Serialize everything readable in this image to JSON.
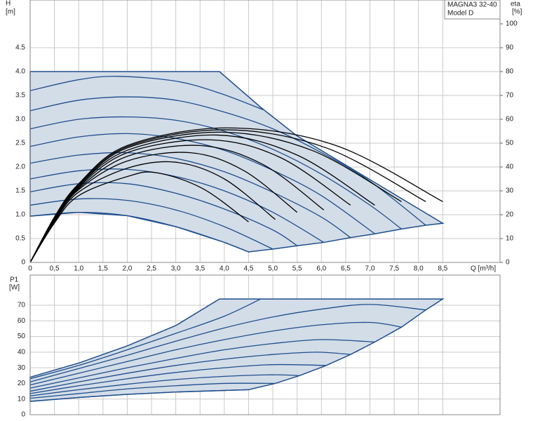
{
  "chart_data": [
    {
      "type": "line",
      "annotations": [
        "MAGNA3 32-40",
        "Model D"
      ],
      "ylabel": "H",
      "yunit": "[m]",
      "y2label": "eta",
      "y2unit": "[%]",
      "xlabel": "Q [m³/h]",
      "xlim": [
        0,
        9.68
      ],
      "ylim": [
        0,
        5.5
      ],
      "y2lim": [
        0,
        110
      ],
      "show_xtick_labels": true,
      "grid": true,
      "xticks": [
        0,
        {
          "value": 0.5,
          "label": "0,5"
        },
        {
          "value": 1,
          "label": "1,0"
        },
        {
          "value": 1.5,
          "label": "1,5"
        },
        {
          "value": 2,
          "label": "2,0"
        },
        {
          "value": 2.5,
          "label": "2,5"
        },
        {
          "value": 3,
          "label": "3,0"
        },
        {
          "value": 3.5,
          "label": "3,5"
        },
        {
          "value": 4,
          "label": "4,0"
        },
        {
          "value": 4.5,
          "label": "4,5"
        },
        {
          "value": 5,
          "label": "5,0"
        },
        {
          "value": 5.5,
          "label": "5,5"
        },
        {
          "value": 6,
          "label": "6,0"
        },
        {
          "value": 6.5,
          "label": "6,5"
        },
        {
          "value": 7,
          "label": "7,0"
        },
        {
          "value": 7.5,
          "label": "7,5"
        },
        {
          "value": 8,
          "label": "8,0"
        },
        {
          "value": 8.5,
          "label": "8,5"
        }
      ],
      "yticks": [
        0,
        0.5,
        {
          "value": 1,
          "label": "1.0"
        },
        1.5,
        {
          "value": 2,
          "label": "2.0"
        },
        2.5,
        {
          "value": 3,
          "label": "3.0"
        },
        3.5,
        {
          "value": 4,
          "label": "4.0"
        },
        4.5
      ],
      "y2ticks": [
        0,
        10,
        20,
        30,
        40,
        50,
        60,
        70,
        80,
        90,
        100
      ],
      "envelope": {
        "fill": "#d3dde8",
        "stroke": "#1f4e8c",
        "x": [
          0,
          0,
          3.9,
          4.75,
          5.5,
          8.5,
          8.15,
          7.65,
          7.1,
          6.6,
          6.05,
          5.5,
          5.0,
          4.5,
          4,
          3,
          2,
          1,
          0
        ],
        "values": [
          0.97,
          4.0,
          4.0,
          3.25,
          2.65,
          0.82,
          0.78,
          0.7,
          0.6,
          0.52,
          0.42,
          0.35,
          0.28,
          0.22,
          0.42,
          0.75,
          0.98,
          1.05,
          0.97
        ]
      },
      "series": [
        {
          "color": "#1f4e8c",
          "x": [
            0,
            1,
            2,
            3,
            4,
            4.5
          ],
          "values": [
            0.97,
            1.05,
            0.98,
            0.75,
            0.42,
            0.22
          ]
        },
        {
          "color": "#1f4e8c",
          "x": [
            0,
            1,
            2,
            3,
            4,
            5.0
          ],
          "values": [
            1.2,
            1.33,
            1.3,
            1.1,
            0.75,
            0.28
          ]
        },
        {
          "color": "#1f4e8c",
          "x": [
            0,
            1,
            2,
            3,
            4,
            5,
            5.5
          ],
          "values": [
            1.48,
            1.65,
            1.65,
            1.45,
            1.12,
            0.68,
            0.35
          ]
        },
        {
          "color": "#1f4e8c",
          "x": [
            0,
            1,
            2,
            3,
            4,
            5,
            6.05
          ],
          "values": [
            1.75,
            1.92,
            1.95,
            1.8,
            1.5,
            1.05,
            0.42
          ]
        },
        {
          "color": "#1f4e8c",
          "x": [
            0,
            1,
            2,
            3,
            4,
            5,
            6,
            6.6
          ],
          "values": [
            2.08,
            2.25,
            2.3,
            2.18,
            1.9,
            1.47,
            0.95,
            0.52
          ]
        },
        {
          "color": "#1f4e8c",
          "x": [
            0,
            1,
            2,
            3,
            4,
            5,
            6,
            7.1
          ],
          "values": [
            2.43,
            2.63,
            2.7,
            2.6,
            2.35,
            1.93,
            1.4,
            0.6
          ]
        },
        {
          "color": "#1f4e8c",
          "x": [
            0,
            1,
            2,
            3,
            4,
            5,
            6,
            7,
            7.65
          ],
          "values": [
            2.8,
            3.0,
            3.05,
            2.98,
            2.75,
            2.37,
            1.85,
            1.2,
            0.7
          ]
        },
        {
          "color": "#1f4e8c",
          "x": [
            0,
            1,
            2,
            3,
            4,
            5,
            6,
            7,
            8.15
          ],
          "values": [
            3.18,
            3.4,
            3.47,
            3.4,
            3.15,
            2.8,
            2.3,
            1.7,
            0.78
          ]
        },
        {
          "color": "#1f4e8c",
          "x": [
            0,
            1,
            1.8,
            3,
            3.9,
            4.8
          ],
          "values": [
            3.6,
            3.83,
            3.9,
            3.8,
            3.55,
            3.2
          ]
        },
        {
          "color": "#000000",
          "axis": "y2",
          "x": [
            0,
            0.5,
            1,
            2,
            2.6,
            3.55,
            4.5
          ],
          "values": [
            0,
            16.5,
            28,
            36,
            37.6,
            31,
            17
          ]
        },
        {
          "color": "#000000",
          "axis": "y2",
          "x": [
            0,
            0.5,
            1,
            2,
            3.0,
            4.0,
            5.05
          ],
          "values": [
            0,
            17,
            29.5,
            39.5,
            42,
            35,
            18
          ]
        },
        {
          "color": "#000000",
          "axis": "y2",
          "x": [
            0,
            0.5,
            1,
            2,
            3.3,
            4.4,
            5.5
          ],
          "values": [
            0,
            17.5,
            30.5,
            42.5,
            46,
            38.5,
            21
          ]
        },
        {
          "color": "#000000",
          "axis": "y2",
          "x": [
            0,
            0.5,
            1,
            2,
            3.5,
            4.8,
            6.05
          ],
          "values": [
            0,
            18,
            31,
            44.5,
            49,
            41,
            22
          ]
        },
        {
          "color": "#000000",
          "axis": "y2",
          "x": [
            0,
            0.5,
            1,
            2,
            3.7,
            5.15,
            6.6
          ],
          "values": [
            0,
            18,
            31.5,
            46,
            51.4,
            44,
            24
          ]
        },
        {
          "color": "#000000",
          "axis": "y2",
          "x": [
            0,
            0.5,
            1,
            2,
            3.85,
            5.5,
            7.1
          ],
          "values": [
            0,
            18.5,
            32,
            47,
            53.4,
            45,
            24
          ]
        },
        {
          "color": "#000000",
          "axis": "y2",
          "x": [
            0,
            0.5,
            1,
            2,
            3.95,
            5.8,
            7.65
          ],
          "values": [
            0,
            18.5,
            32,
            48,
            54.6,
            47,
            25.5
          ]
        },
        {
          "color": "#000000",
          "axis": "y2",
          "x": [
            0,
            0.5,
            1,
            2,
            4.0,
            6.1,
            8.15
          ],
          "values": [
            0,
            18.5,
            32.5,
            48.5,
            55.6,
            48,
            25.5
          ]
        },
        {
          "color": "#000000",
          "axis": "y2",
          "x": [
            0,
            0.5,
            1,
            2,
            4.05,
            6.3,
            8.5
          ],
          "values": [
            0,
            19,
            33,
            49,
            56.4,
            49,
            25.5
          ]
        }
      ]
    },
    {
      "type": "line",
      "ylabel": "P1",
      "yunit": "[W]",
      "xlim": [
        0,
        9.68
      ],
      "ylim": [
        0,
        89.3
      ],
      "show_xtick_labels": false,
      "grid": true,
      "xticks": [
        0,
        0.5,
        1,
        1.5,
        2,
        2.5,
        3,
        3.5,
        4,
        4.5,
        5,
        5.5,
        6,
        6.5,
        7,
        7.5,
        8,
        8.5
      ],
      "yticks": [
        0,
        10,
        20,
        30,
        40,
        50,
        60,
        70
      ],
      "envelope": {
        "fill": "#d3dde8",
        "stroke": "#1f4e8c",
        "x": [
          0,
          0,
          1,
          2,
          3,
          3.9,
          8.5,
          8.15,
          7.65,
          7.1,
          6.6,
          6.1,
          5.55,
          5.05,
          4.5,
          4,
          3,
          2,
          1,
          0
        ],
        "values": [
          8.5,
          24,
          33,
          44,
          57,
          74,
          74,
          67,
          56,
          46.5,
          38.5,
          31.5,
          25,
          20,
          16,
          15.5,
          14.5,
          13,
          11,
          8.5
        ]
      },
      "series": [
        {
          "color": "#1f4e8c",
          "x": [
            0,
            1,
            2,
            3,
            4,
            4.5
          ],
          "values": [
            8.5,
            11,
            13,
            14.5,
            15.5,
            16
          ]
        },
        {
          "color": "#1f4e8c",
          "x": [
            0,
            1,
            2,
            3,
            4,
            5.05
          ],
          "values": [
            10.5,
            13.5,
            16.5,
            18.5,
            20,
            20
          ]
        },
        {
          "color": "#1f4e8c",
          "x": [
            0,
            1,
            2,
            3,
            4,
            5,
            5.55
          ],
          "values": [
            12,
            16,
            19.5,
            22.5,
            24.5,
            25.5,
            25
          ]
        },
        {
          "color": "#1f4e8c",
          "x": [
            0,
            1,
            2,
            3,
            4,
            5,
            6.1
          ],
          "values": [
            13.5,
            18.5,
            23,
            27,
            30,
            32,
            31.5
          ]
        },
        {
          "color": "#1f4e8c",
          "x": [
            0,
            1,
            2,
            3,
            4,
            5,
            5.9,
            6.6
          ],
          "values": [
            15,
            21,
            26.5,
            31.5,
            35.5,
            38.5,
            40,
            38.5
          ]
        },
        {
          "color": "#1f4e8c",
          "x": [
            0,
            1,
            2,
            3,
            4,
            5,
            6,
            7.1
          ],
          "values": [
            17,
            23.5,
            30,
            36,
            41.5,
            45.5,
            48,
            46.5
          ]
        },
        {
          "color": "#1f4e8c",
          "x": [
            0,
            1,
            2,
            3,
            4,
            5,
            6,
            7,
            7.65
          ],
          "values": [
            19,
            26.5,
            34,
            41.5,
            48,
            53.5,
            57.5,
            59,
            56
          ]
        },
        {
          "color": "#1f4e8c",
          "x": [
            0,
            1,
            2,
            3,
            4,
            5,
            6,
            7,
            8.15
          ],
          "values": [
            21,
            29.5,
            38,
            47,
            55.5,
            62.5,
            67.5,
            70.5,
            67
          ]
        },
        {
          "color": "#1f4e8c",
          "x": [
            0,
            1,
            2,
            3,
            4,
            4.75
          ],
          "values": [
            23,
            31.5,
            41.5,
            52,
            63,
            74
          ]
        }
      ]
    }
  ]
}
